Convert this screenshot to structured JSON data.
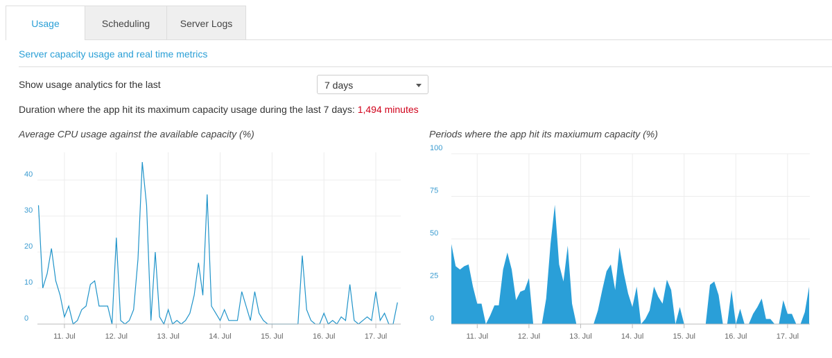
{
  "tabs": [
    "Usage",
    "Scheduling",
    "Server Logs"
  ],
  "section_title": "Server capacity usage and real time metrics",
  "range_label": "Show usage analytics for the last",
  "range_select": "7 days",
  "duration_text": "Duration where the app hit its maximum capacity usage during the last 7 days:",
  "duration_value": "1,494 minutes",
  "chart_data": [
    {
      "type": "line",
      "title": "Average CPU usage against the available capacity (%)",
      "color": "#1f93c9",
      "x": [
        10.5,
        10.583,
        10.667,
        10.75,
        10.833,
        10.917,
        11,
        11.083,
        11.167,
        11.25,
        11.333,
        11.417,
        11.5,
        11.583,
        11.667,
        11.75,
        11.833,
        11.917,
        12,
        12.083,
        12.167,
        12.25,
        12.333,
        12.417,
        12.5,
        12.583,
        12.667,
        12.75,
        12.833,
        12.917,
        13,
        13.083,
        13.167,
        13.25,
        13.333,
        13.417,
        13.5,
        13.583,
        13.667,
        13.75,
        13.833,
        13.917,
        14,
        14.083,
        14.167,
        14.25,
        14.333,
        14.417,
        14.5,
        14.583,
        14.667,
        14.75,
        14.833,
        14.917,
        15,
        15.083,
        15.167,
        15.25,
        15.333,
        15.417,
        15.5,
        15.583,
        15.667,
        15.75,
        15.833,
        15.917,
        16,
        16.083,
        16.167,
        16.25,
        16.333,
        16.417,
        16.5,
        16.583,
        16.667,
        16.75,
        16.833,
        16.917,
        17,
        17.083,
        17.167,
        17.25,
        17.333,
        17.417
      ],
      "values": [
        33,
        10,
        14,
        21,
        12,
        8,
        2,
        5,
        0,
        1,
        4,
        5,
        11,
        12,
        5,
        5,
        5,
        0,
        24,
        1,
        0,
        1,
        4,
        18,
        45,
        33,
        1,
        20,
        2,
        0,
        4,
        0,
        1,
        0,
        1,
        3,
        8,
        17,
        8,
        36,
        5,
        3,
        1,
        4,
        1,
        1,
        1,
        9,
        5,
        1,
        9,
        3,
        1,
        0,
        0,
        0,
        0,
        0,
        0,
        0,
        0,
        19,
        4,
        1,
        0,
        0,
        3,
        0,
        1,
        0,
        2,
        1,
        11,
        1,
        0,
        1,
        2,
        1,
        9,
        1,
        3,
        0,
        0,
        6
      ],
      "xlim": [
        10.48,
        17.48
      ],
      "ylim": [
        0,
        47.7
      ],
      "yticks": [
        0,
        10,
        20,
        30,
        40
      ],
      "xticks": [
        {
          "value": 11,
          "label": "11. Jul"
        },
        {
          "value": 12,
          "label": "12. Jul"
        },
        {
          "value": 13,
          "label": "13. Jul"
        },
        {
          "value": 14,
          "label": "14. Jul"
        },
        {
          "value": 15,
          "label": "15. Jul"
        },
        {
          "value": 16,
          "label": "16. Jul"
        },
        {
          "value": 17,
          "label": "17. Jul"
        }
      ],
      "grid": true
    },
    {
      "type": "area",
      "title": "Periods where the app hit its maxiumum capacity (%)",
      "color": "#2a9fd8",
      "x": [
        10.5,
        10.583,
        10.667,
        10.75,
        10.833,
        10.917,
        11,
        11.083,
        11.167,
        11.25,
        11.333,
        11.417,
        11.5,
        11.583,
        11.667,
        11.75,
        11.833,
        11.917,
        12,
        12.083,
        12.167,
        12.25,
        12.333,
        12.417,
        12.5,
        12.583,
        12.667,
        12.75,
        12.833,
        12.917,
        13,
        13.083,
        13.167,
        13.25,
        13.333,
        13.417,
        13.5,
        13.583,
        13.667,
        13.75,
        13.833,
        13.917,
        14,
        14.083,
        14.167,
        14.25,
        14.333,
        14.417,
        14.5,
        14.583,
        14.667,
        14.75,
        14.833,
        14.917,
        15,
        15.083,
        15.167,
        15.25,
        15.333,
        15.417,
        15.5,
        15.583,
        15.667,
        15.75,
        15.833,
        15.917,
        16,
        16.083,
        16.167,
        16.25,
        16.333,
        16.417,
        16.5,
        16.583,
        16.667,
        16.75,
        16.833,
        16.917,
        17,
        17.083,
        17.167,
        17.25,
        17.333,
        17.417
      ],
      "values": [
        47,
        34,
        32,
        34,
        35,
        22,
        12,
        12,
        0,
        5,
        11,
        11,
        32,
        42,
        32,
        14,
        19,
        20,
        27,
        0,
        0,
        0,
        15,
        47,
        70,
        35,
        25,
        46,
        12,
        0,
        0,
        0,
        0,
        0,
        8,
        20,
        31,
        35,
        20,
        45,
        30,
        18,
        10,
        22,
        0,
        3,
        8,
        22,
        16,
        12,
        26,
        20,
        0,
        10,
        0,
        0,
        0,
        0,
        0,
        0,
        23,
        25,
        17,
        0,
        0,
        20,
        0,
        9,
        0,
        0,
        6,
        10,
        15,
        3,
        3,
        0,
        0,
        14,
        6,
        6,
        0,
        0,
        7,
        22
      ],
      "xlim": [
        10.5,
        17.43
      ],
      "ylim": [
        0,
        100
      ],
      "yticks": [
        0,
        25,
        50,
        75,
        100
      ],
      "xticks": [
        {
          "value": 11,
          "label": "11. Jul"
        },
        {
          "value": 12,
          "label": "12. Jul"
        },
        {
          "value": 13,
          "label": "13. Jul"
        },
        {
          "value": 14,
          "label": "14. Jul"
        },
        {
          "value": 15,
          "label": "15. Jul"
        },
        {
          "value": 16,
          "label": "16. Jul"
        },
        {
          "value": 17,
          "label": "17. Jul"
        }
      ],
      "grid": true
    }
  ]
}
